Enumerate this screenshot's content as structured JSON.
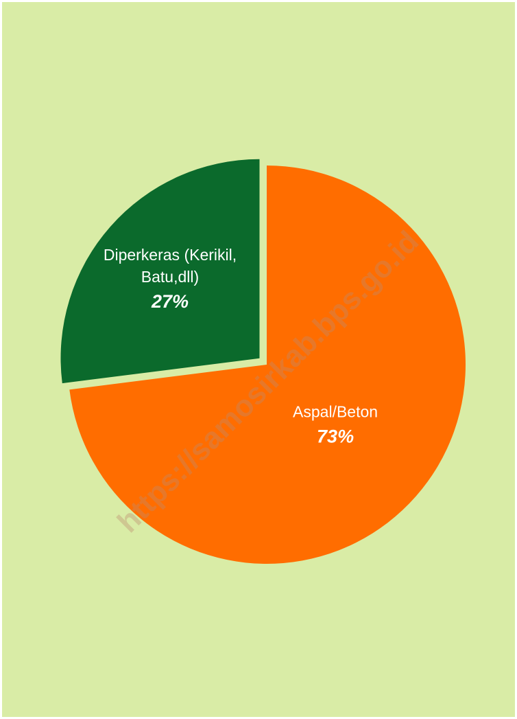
{
  "colors": {
    "background": "#d9eca6",
    "aspal": "#ff6d00",
    "diperkeras": "#0b6a2c",
    "label_text": "#ffffff"
  },
  "watermark": "https://samosirkab.bps.go.id",
  "chart_data": {
    "type": "pie",
    "title": "",
    "slices": [
      {
        "name": "Aspal/Beton",
        "label_lines": [
          "Aspal/Beton"
        ],
        "value": 73,
        "percent_label": "73%",
        "color": "#ff6d00"
      },
      {
        "name": "Diperkeras (Kerikil, Batu,dll)",
        "label_lines": [
          "Diperkeras (Kerikil,",
          "Batu,dll)"
        ],
        "value": 27,
        "percent_label": "27%",
        "color": "#0b6a2c",
        "exploded": true
      }
    ],
    "start_angle_deg": 0,
    "direction": "clockwise",
    "legend": "none"
  }
}
